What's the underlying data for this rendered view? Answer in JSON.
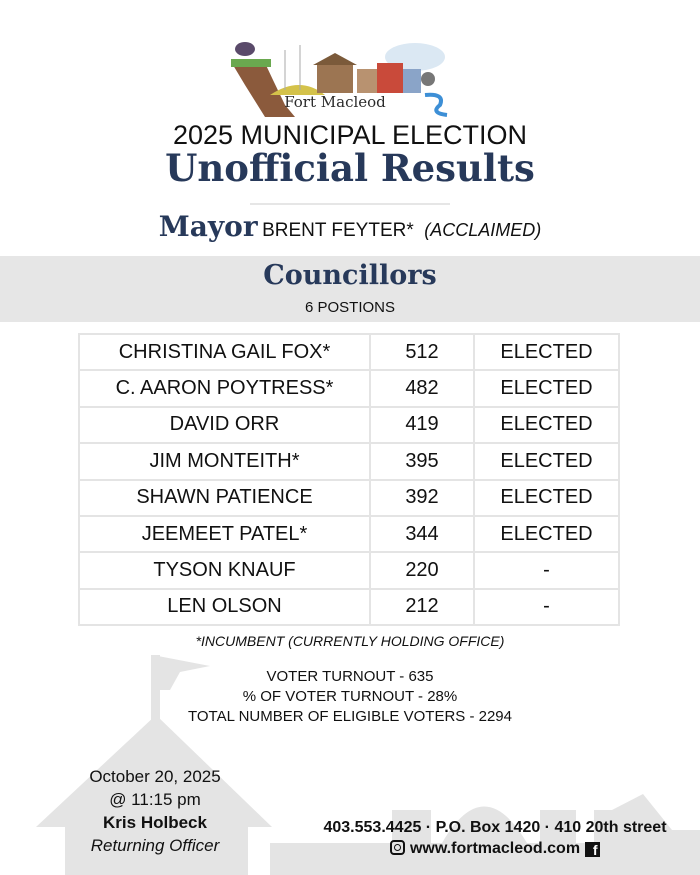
{
  "logo": {
    "text": "Fort Macleod"
  },
  "header": {
    "line1": "2025 MUNICIPAL ELECTION",
    "line2": "Unofficial Results"
  },
  "mayor": {
    "label": "Mayor",
    "name": "BRENT FEYTER*",
    "status": "(ACCLAIMED)"
  },
  "councillors": {
    "title": "Councillors",
    "subtitle": "6 POSTIONS",
    "rows": [
      {
        "name": "CHRISTINA GAIL FOX*",
        "votes": "512",
        "status": "ELECTED"
      },
      {
        "name": "C. AARON POYTRESS*",
        "votes": "482",
        "status": "ELECTED"
      },
      {
        "name": "DAVID ORR",
        "votes": "419",
        "status": "ELECTED"
      },
      {
        "name": "JIM MONTEITH*",
        "votes": "395",
        "status": "ELECTED"
      },
      {
        "name": "SHAWN PATIENCE",
        "votes": "392",
        "status": "ELECTED"
      },
      {
        "name": "JEEMEET PATEL*",
        "votes": "344",
        "status": "ELECTED"
      },
      {
        "name": "TYSON KNAUF",
        "votes": "220",
        "status": "-"
      },
      {
        "name": "LEN OLSON",
        "votes": "212",
        "status": "-"
      }
    ]
  },
  "note": "*INCUMBENT (CURRENTLY HOLDING OFFICE)",
  "stats": [
    "VOTER TURNOUT - 635",
    "% OF VOTER TURNOUT - 28%",
    "TOTAL NUMBER OF ELIGIBLE VOTERS - 2294"
  ],
  "footer": {
    "date": "October 20, 2025",
    "time": "@ 11:15 pm",
    "officer": "Kris Holbeck",
    "officer_title": "Returning Officer",
    "contact": "403.553.4425 · P.O. Box 1420 · 410 20th street",
    "website": "www.fortmacleod.com"
  },
  "colors": {
    "title": "#27395a",
    "band": "#e6e6e6",
    "silhouette": "#e4e4e4"
  }
}
